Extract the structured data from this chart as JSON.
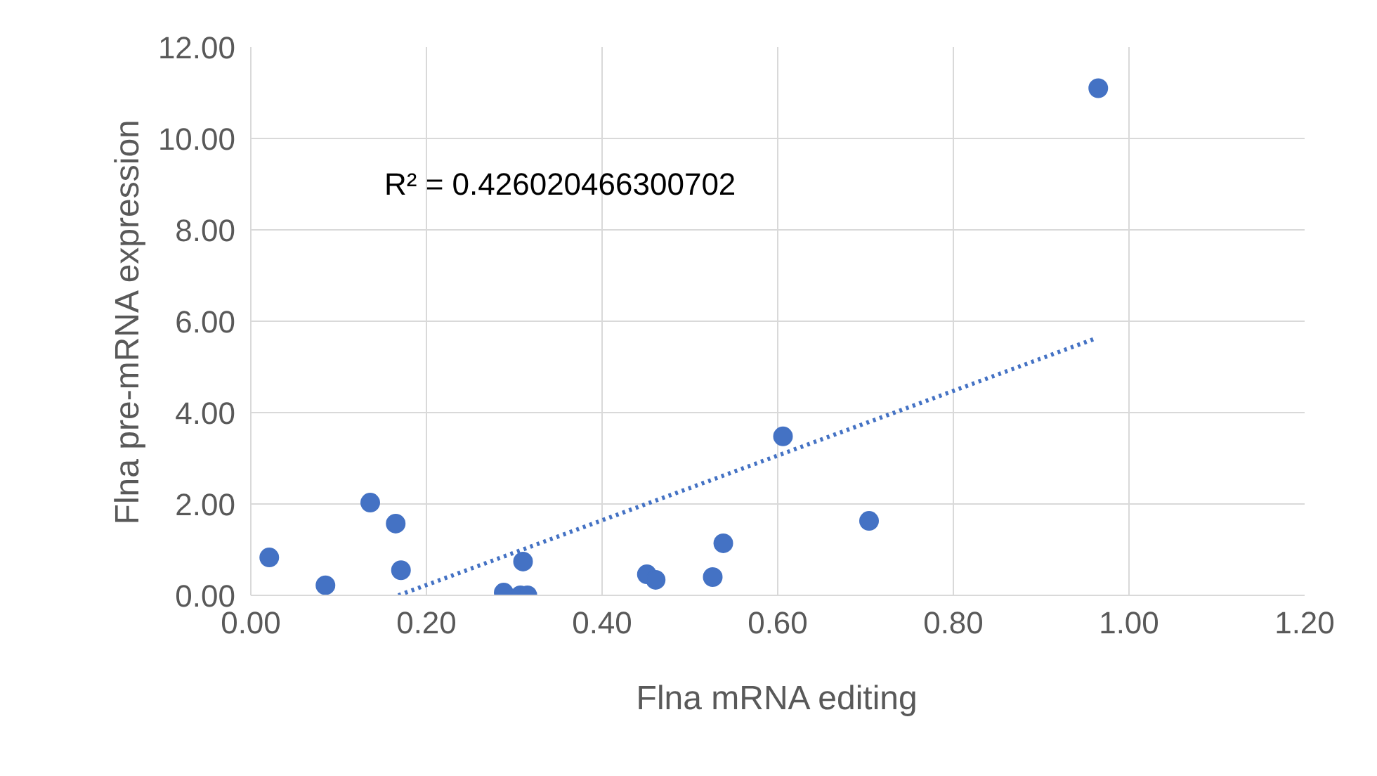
{
  "chart_data": {
    "type": "scatter",
    "xlabel": "Flna mRNA editing",
    "ylabel": "Flna pre-mRNA expression",
    "annotations": [
      "R² = 0.426020466300702"
    ],
    "series": [
      {
        "color": "#4472c4",
        "marker": "circle",
        "x": [
          0.021,
          0.085,
          0.136,
          0.165,
          0.171,
          0.288,
          0.31,
          0.307,
          0.315,
          0.451,
          0.461,
          0.526,
          0.538,
          0.606,
          0.704,
          0.965
        ],
        "values": [
          0.83,
          0.22,
          2.03,
          1.57,
          0.55,
          0.06,
          0.74,
          0.0,
          0.0,
          0.46,
          0.34,
          0.4,
          1.14,
          3.48,
          1.63,
          11.1
        ]
      },
      {
        "type": "line",
        "color": "#4472c4",
        "line_style": "dotted",
        "x": [
          0.168,
          0.963
        ],
        "values": [
          0.0,
          5.63
        ]
      }
    ],
    "xlim": [
      0,
      1.2
    ],
    "ylim": [
      0,
      12
    ],
    "xticks": [
      {
        "value": 0,
        "label": "0.00"
      },
      {
        "value": 0.2,
        "label": "0.20"
      },
      {
        "value": 0.4,
        "label": "0.40"
      },
      {
        "value": 0.6,
        "label": "0.60"
      },
      {
        "value": 0.8,
        "label": "0.80"
      },
      {
        "value": 1.0,
        "label": "1.00"
      },
      {
        "value": 1.2,
        "label": "1.20"
      }
    ],
    "yticks": [
      {
        "value": 0,
        "label": "0.00"
      },
      {
        "value": 2,
        "label": "2.00"
      },
      {
        "value": 4,
        "label": "4.00"
      },
      {
        "value": 6,
        "label": "6.00"
      },
      {
        "value": 8,
        "label": "8.00"
      },
      {
        "value": 10,
        "label": "10.00"
      },
      {
        "value": 12,
        "label": "12.00"
      }
    ],
    "grid": true
  }
}
